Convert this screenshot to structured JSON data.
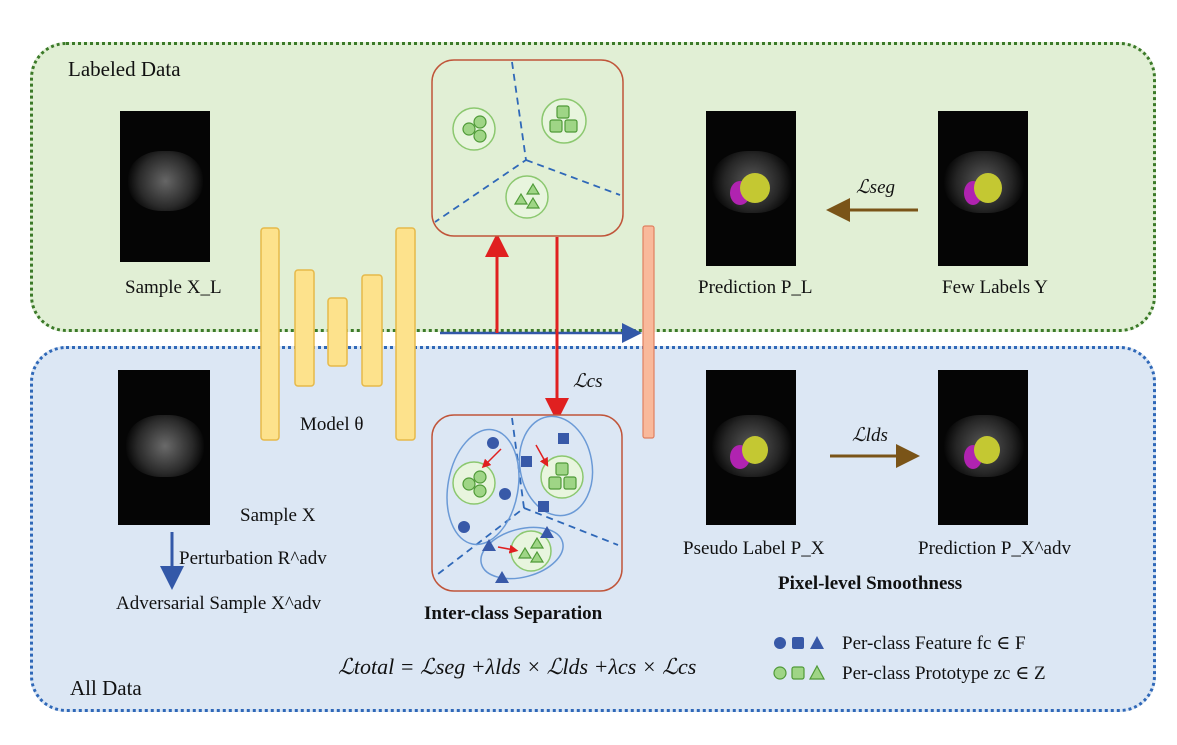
{
  "panels": {
    "labeled_title": "Labeled Data",
    "all_title": "All Data"
  },
  "captions": {
    "sample_xl": "Sample X_L",
    "prediction_pl": "Prediction P_L",
    "few_labels": "Few Labels Y",
    "model": "Model θ",
    "sample_x": "Sample X",
    "perturbation": "Perturbation R^adv",
    "adversarial": "Adversarial Sample X^adv",
    "pseudo_label": "Pseudo Label P_X",
    "prediction_px_adv": "Prediction P_X^adv"
  },
  "losses": {
    "seg": "ℒseg",
    "cs": "ℒcs",
    "lds": "ℒlds",
    "total": "ℒtotal = ℒseg +λlds × ℒlds +λcs × ℒcs"
  },
  "titles": {
    "inter_class": "Inter-class Separation",
    "pixel_level": "Pixel-level Smoothness"
  },
  "legend": {
    "feature": "Per-class Feature fc ∈ F",
    "prototype": "Per-class Prototype zc ∈ Z"
  },
  "colors": {
    "labeled_bg": "#e1efd5",
    "labeled_border": "#3b7a28",
    "all_bg": "#dce7f4",
    "all_border": "#2f68b8",
    "model_block": "#fde28c",
    "red_arrow": "#e02020",
    "blue_arrow": "#3358a8",
    "brown_arrow": "#7a5418",
    "prototype_fill": "#9fd586",
    "feature_fill": "#3859a8"
  }
}
